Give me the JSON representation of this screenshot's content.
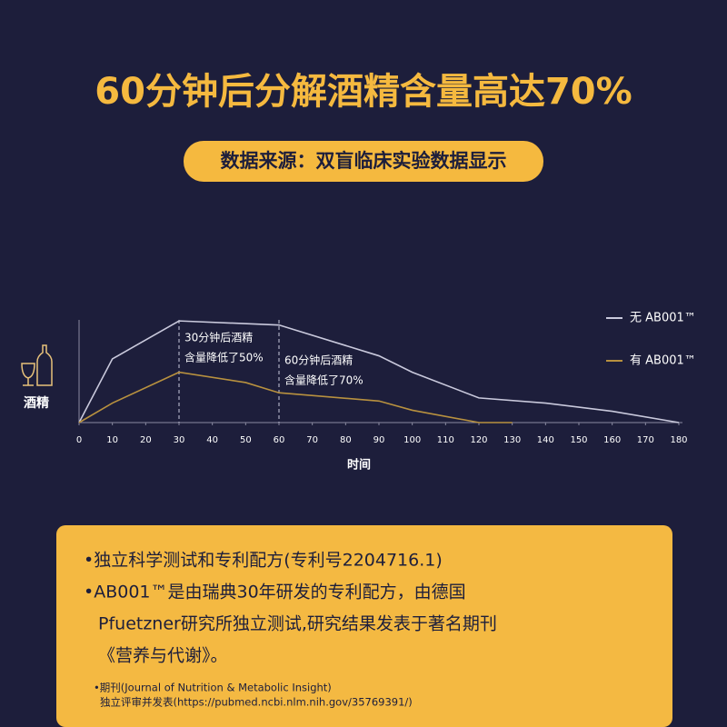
{
  "header": {
    "title": "60分钟后分解酒精含量高达70%",
    "subtitle": "数据来源：双盲临床实验数据显示"
  },
  "chart_data": {
    "type": "line",
    "y_label": "酒精",
    "x_label": "时间",
    "xlim": [
      0,
      180
    ],
    "xticks": [
      0,
      10,
      20,
      30,
      40,
      50,
      60,
      70,
      80,
      90,
      100,
      110,
      120,
      130,
      140,
      150,
      160,
      170,
      180
    ],
    "ylim": [
      0,
      100
    ],
    "series": [
      {
        "name": "无 AB001™",
        "color": "#c9c9dc",
        "x": [
          0,
          10,
          30,
          60,
          90,
          100,
          120,
          140,
          160,
          180
        ],
        "values": [
          0,
          62,
          99,
          95,
          65,
          49,
          24,
          19,
          11,
          0
        ]
      },
      {
        "name": "有 AB001™",
        "color": "#b8913f",
        "x": [
          0,
          10,
          30,
          50,
          60,
          90,
          100,
          120,
          130
        ],
        "values": [
          0,
          19,
          49,
          39,
          29,
          21,
          12,
          0,
          0
        ]
      }
    ],
    "annotations": [
      {
        "x": 30,
        "lines": [
          "30分钟后酒精",
          "含量降低了50%"
        ]
      },
      {
        "x": 60,
        "lines": [
          "60分钟后酒精",
          "含量降低了70%"
        ]
      }
    ]
  },
  "info": {
    "items": [
      {
        "lines": [
          "•独立科学测试和专利配方(专利号2204716.1)"
        ]
      },
      {
        "lines": [
          "•AB001™是由瑞典30年研发的专利配方，由德国",
          "Pfuetzner研究所独立测试,研究结果发表于著名期刊",
          "《营养与代谢》。"
        ]
      }
    ],
    "footnote": [
      "•期刊(Journal of Nutrition & Metabolic Insight)",
      "独立评审并发表(https://pubmed.ncbi.nlm.nih.gov/35769391/)"
    ]
  }
}
